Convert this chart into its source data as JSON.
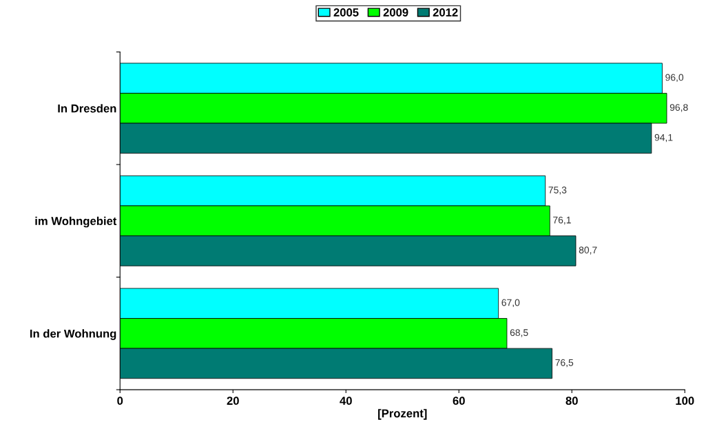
{
  "chart_data": {
    "type": "bar",
    "orientation": "horizontal",
    "xlabel": "[Prozent]",
    "categories": [
      "In Dresden",
      "im Wohngebiet",
      "In der Wohnung"
    ],
    "series": [
      {
        "name": "2005",
        "color": "#00ffff",
        "values": [
          96.0,
          75.3,
          67.0
        ],
        "value_labels": [
          "96,0",
          "75,3",
          "67,0"
        ]
      },
      {
        "name": "2009",
        "color": "#00ff00",
        "values": [
          96.8,
          76.1,
          68.5
        ],
        "value_labels": [
          "96,8",
          "76,1",
          "68,5"
        ]
      },
      {
        "name": "2012",
        "color": "#007b73",
        "values": [
          94.1,
          80.7,
          76.5
        ],
        "value_labels": [
          "94,1",
          "80,7",
          "76,5"
        ]
      }
    ],
    "xlim": [
      0,
      100
    ],
    "xticks": [
      0,
      20,
      40,
      60,
      80,
      100
    ],
    "grid": false,
    "legend": "top"
  }
}
